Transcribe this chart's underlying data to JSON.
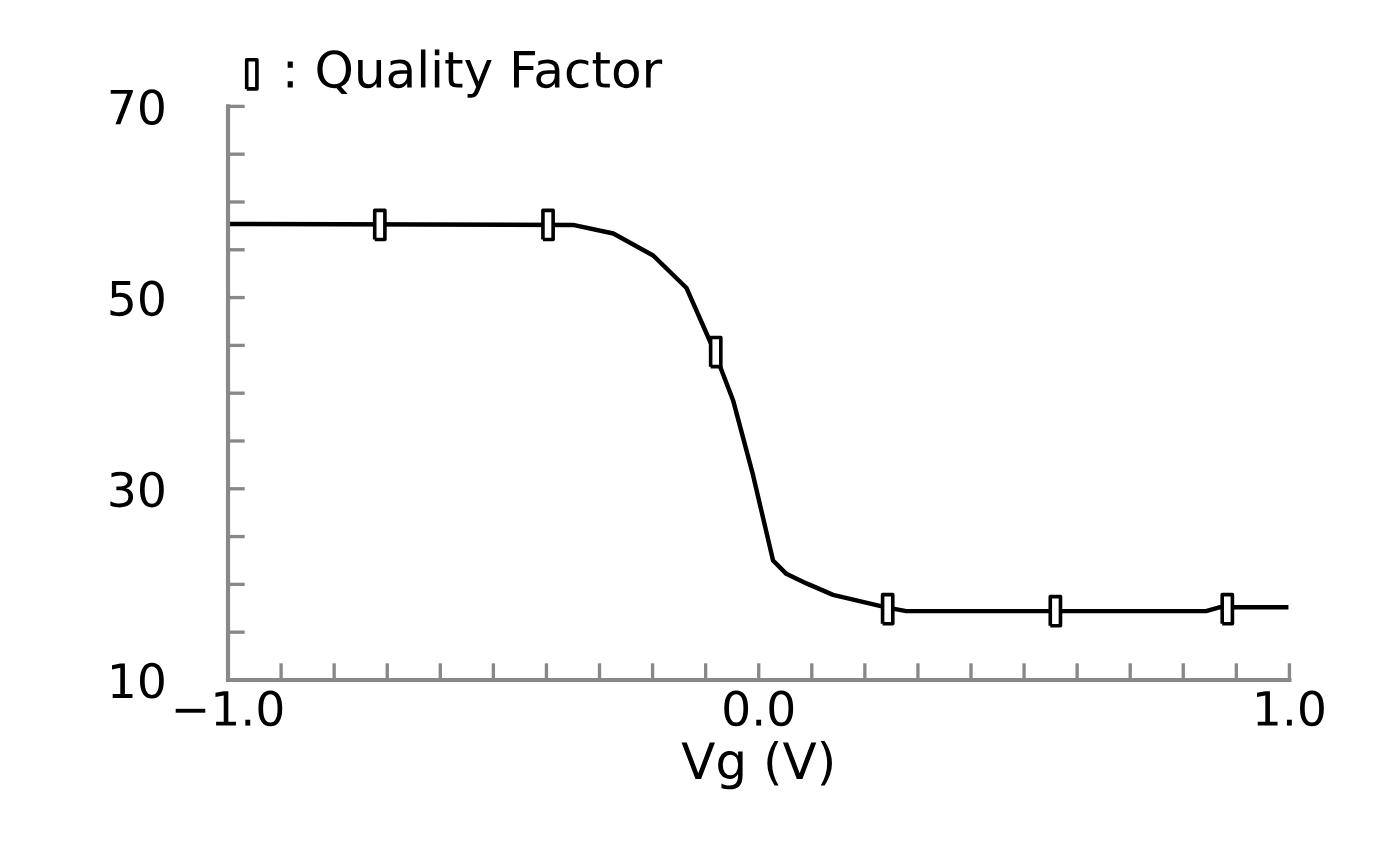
{
  "chart_data": {
    "type": "line",
    "xlabel": "Vg (V)",
    "xlim": [
      -1.0,
      1.0
    ],
    "xticks": [
      {
        "value": -1.0,
        "label": "−1.0"
      },
      {
        "value": -0.9,
        "label": null
      },
      {
        "value": -0.8,
        "label": null
      },
      {
        "value": -0.7,
        "label": null
      },
      {
        "value": -0.6,
        "label": null
      },
      {
        "value": -0.5,
        "label": null
      },
      {
        "value": -0.4,
        "label": null
      },
      {
        "value": -0.3,
        "label": null
      },
      {
        "value": -0.2,
        "label": null
      },
      {
        "value": -0.1,
        "label": null
      },
      {
        "value": 0.0,
        "label": "0.0"
      },
      {
        "value": 0.1,
        "label": null
      },
      {
        "value": 0.2,
        "label": null
      },
      {
        "value": 0.3,
        "label": null
      },
      {
        "value": 0.4,
        "label": null
      },
      {
        "value": 0.5,
        "label": null
      },
      {
        "value": 0.6,
        "label": null
      },
      {
        "value": 0.7,
        "label": null
      },
      {
        "value": 0.8,
        "label": null
      },
      {
        "value": 0.9,
        "label": null
      },
      {
        "value": 1.0,
        "label": "1.0"
      }
    ],
    "ylim": [
      10,
      70
    ],
    "yticks": [
      10,
      {
        "value": 15,
        "label": null
      },
      {
        "value": 20,
        "label": null
      },
      {
        "value": 25,
        "label": null
      },
      30,
      {
        "value": 35,
        "label": null
      },
      {
        "value": 40,
        "label": null
      },
      {
        "value": 45,
        "label": null
      },
      50,
      {
        "value": 55,
        "label": null
      },
      {
        "value": 60,
        "label": null
      },
      {
        "value": 65,
        "label": null
      },
      70
    ],
    "grid": false,
    "legend": "top left",
    "series": [
      {
        "color": "#000000",
        "line_style": "solid",
        "marker": "none",
        "x": [
          -1.0,
          -0.35,
          -0.274,
          -0.199,
          -0.136,
          -0.086,
          -0.048,
          -0.011,
          0.027,
          0.052,
          0.09,
          0.14,
          0.24,
          0.278,
          0.843,
          0.868,
          0.994
        ],
        "values": [
          57.7,
          57.6,
          56.7,
          54.4,
          51.0,
          44.7,
          39.2,
          31.5,
          22.5,
          21.1,
          20.1,
          18.9,
          17.6,
          17.2,
          17.2,
          17.6,
          17.6
        ]
      },
      {
        "type": "scatter",
        "name": ": Quality Factor",
        "color": "#000000",
        "marker": "square",
        "x": [
          -0.714,
          -0.397,
          -0.081,
          0.243,
          0.559,
          0.883
        ],
        "values": [
          57.6,
          57.6,
          44.3,
          17.4,
          17.2,
          17.4
        ]
      }
    ]
  }
}
